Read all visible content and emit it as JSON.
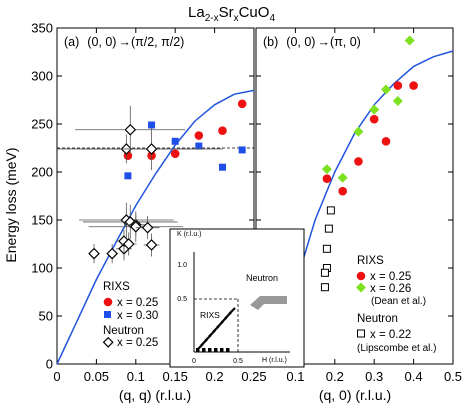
{
  "title": "La2-xSrxCuO4",
  "title_parts": {
    "el1": "La",
    "sub1": "2-x",
    "el2": "Sr",
    "sub2": "x",
    "el3": "CuO",
    "sub3": "4"
  },
  "ylabel": "Energy loss (meV)",
  "chart_data": [
    {
      "type": "scatter",
      "panel_label": "(a) (0, 0)→(π/2, π/2)",
      "panel_parts": {
        "id": "(a)",
        "from": "(0, 0)",
        "arrow": "→",
        "to": "(π/2, π/2)"
      },
      "xlabel": "(q, q) (r.l.u.)",
      "ylabel": "Energy loss (meV)",
      "xlim": [
        0,
        0.25
      ],
      "ylim": [
        0,
        350
      ],
      "x_ticks": [
        "0",
        "0.05",
        "0.1",
        "0.15",
        "0.2",
        "0.25"
      ],
      "y_ticks": [
        "0",
        "50",
        "100",
        "150",
        "200",
        "250",
        "300",
        "350"
      ],
      "curve": {
        "color": "#2255dd",
        "x": [
          0,
          0.025,
          0.05,
          0.075,
          0.1,
          0.125,
          0.15,
          0.175,
          0.2,
          0.225,
          0.25
        ],
        "y": [
          0,
          44,
          88,
          127,
          165,
          198,
          228,
          253,
          270,
          281,
          285
        ]
      },
      "series": [
        {
          "name": "x = 0.25",
          "group": "RIXS",
          "marker": "circle",
          "color": "#ee1111",
          "x": [
            0.09,
            0.12,
            0.15,
            0.18,
            0.21,
            0.235
          ],
          "y": [
            217,
            217,
            219,
            238,
            243,
            271
          ]
        },
        {
          "name": "x = 0.30",
          "group": "RIXS",
          "marker": "square",
          "color": "#1f4ee8",
          "x": [
            0.09,
            0.12,
            0.15,
            0.18,
            0.21,
            0.235
          ],
          "y": [
            196,
            249,
            232,
            227,
            205,
            223
          ]
        },
        {
          "name": "x = 0.25",
          "group": "Neutron",
          "marker": "diamond",
          "color": "#000000",
          "x": [
            0.047,
            0.07,
            0.085,
            0.085,
            0.088,
            0.091,
            0.093,
            0.1,
            0.1,
            0.115,
            0.12,
            0.088,
            0.093,
            0.12
          ],
          "y": [
            115,
            115,
            120,
            128,
            150,
            125,
            148,
            145,
            143,
            142,
            124,
            224,
            244,
            224
          ],
          "xerr": [
            0.004,
            0.004,
            0.01,
            0.01,
            0.06,
            0.01,
            0.06,
            0.015,
            0.06,
            0.015,
            0.01,
            0.09,
            0.07,
            0.09
          ],
          "yerr": [
            10,
            10,
            12,
            12,
            18,
            12,
            18,
            12,
            16,
            12,
            12,
            15,
            25,
            22
          ]
        }
      ],
      "legend": [
        {
          "group": "RIXS",
          "items": [
            "x = 0.25",
            "x = 0.30"
          ]
        },
        {
          "group": "Neutron",
          "items": [
            "x = 0.25"
          ]
        }
      ],
      "legend_position": "bottom-right",
      "dashed_line_y": 225
    },
    {
      "type": "scatter",
      "panel_label": "(b) (0, 0)→(π, 0)",
      "panel_parts": {
        "id": "(b)",
        "from": "(0, 0)",
        "arrow": "→",
        "to": "(π, 0)"
      },
      "xlabel": "(q, 0) (r.l.u.)",
      "xlim": [
        0,
        0.5
      ],
      "ylim": [
        0,
        350
      ],
      "x_ticks": [
        "0.1",
        "0.2",
        "0.3",
        "0.4",
        "0.5"
      ],
      "curve": {
        "color": "#2255dd",
        "x": [
          0.05,
          0.1,
          0.15,
          0.2,
          0.25,
          0.3,
          0.35,
          0.4,
          0.45,
          0.5
        ],
        "y": [
          5,
          82,
          150,
          200,
          240,
          270,
          292,
          310,
          320,
          326
        ]
      },
      "series": [
        {
          "name": "x = 0.25",
          "group": "RIXS",
          "marker": "circle",
          "color": "#ee1111",
          "x": [
            0.18,
            0.22,
            0.26,
            0.3,
            0.33,
            0.36,
            0.4
          ],
          "y": [
            193,
            180,
            211,
            255,
            232,
            290,
            290
          ]
        },
        {
          "name": "x = 0.26",
          "group": "RIXS",
          "note": "(Dean et al.)",
          "marker": "diamond",
          "color": "#7de11f",
          "x": [
            0.18,
            0.22,
            0.26,
            0.3,
            0.33,
            0.36,
            0.39
          ],
          "y": [
            203,
            194,
            242,
            265,
            286,
            274,
            337
          ]
        },
        {
          "name": "x = 0.22",
          "group": "Neutron",
          "note": "(Lipscombe et al.)",
          "marker": "open-square",
          "color": "#000000",
          "x": [
            0.19,
            0.185,
            0.18,
            0.18,
            0.175,
            0.175
          ],
          "y": [
            160,
            141,
            120,
            100,
            95,
            80
          ]
        }
      ],
      "legend": [
        {
          "group": "RIXS",
          "items": [
            "x = 0.25",
            "x = 0.26"
          ],
          "note": "(Dean et al.)"
        },
        {
          "group": "Neutron",
          "items": [
            "x = 0.22"
          ],
          "note": "(Lipscombe et al.)"
        }
      ],
      "legend_position": "bottom-right"
    },
    {
      "type": "inset",
      "xlabel": "H (r.l.u.)",
      "ylabel": "K (r.l.u.)",
      "xlim": [
        0,
        1.0
      ],
      "ylim": [
        0,
        1.0
      ],
      "x_ticks": [
        "0",
        "0.5"
      ],
      "y_ticks": [
        "0.5",
        "1.0"
      ],
      "labels": [
        "Neutron",
        "RIXS"
      ],
      "rixs_box": [
        0.5,
        0.5
      ]
    }
  ]
}
